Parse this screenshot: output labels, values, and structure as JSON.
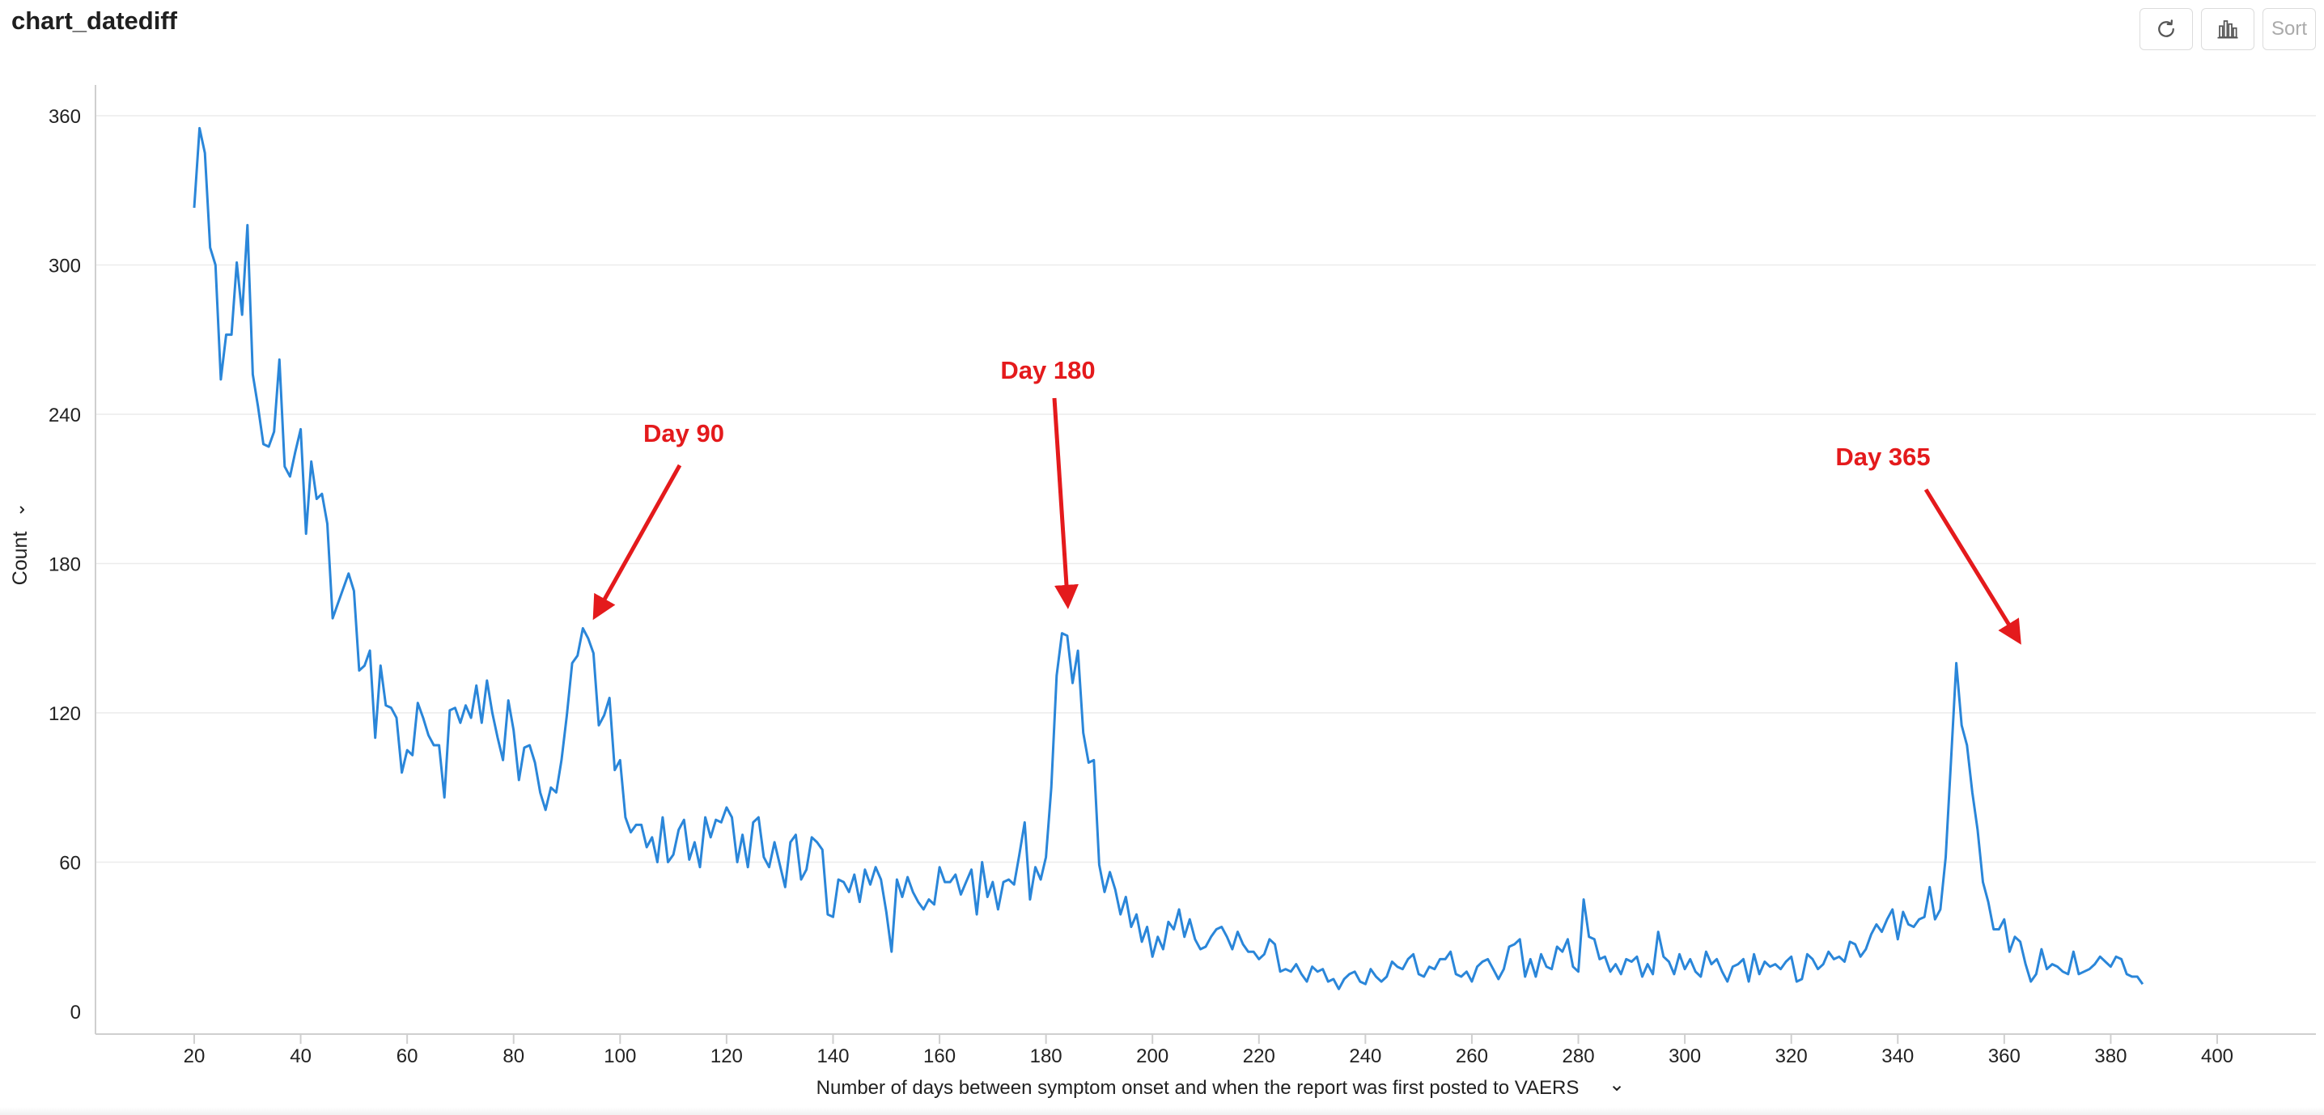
{
  "page": {
    "title": "chart_datediff"
  },
  "toolbar": {
    "refresh_icon": "refresh-icon",
    "chart_icon": "bar-chart-icon",
    "sort_label": "Sort"
  },
  "colors": {
    "line": "#2a86d9",
    "annotation": "#e41a1c",
    "grid": "#ececec"
  },
  "chart_data": {
    "type": "line",
    "title": "",
    "xlabel": "Number of days between symptom onset and when the report was first posted to VAERS",
    "ylabel": "Count",
    "xlim": [
      20,
      400
    ],
    "ylim": [
      0,
      360
    ],
    "xticks": [
      20,
      40,
      60,
      80,
      100,
      120,
      140,
      160,
      180,
      200,
      220,
      240,
      260,
      280,
      300,
      320,
      340,
      360,
      380,
      400
    ],
    "yticks": [
      0,
      60,
      120,
      180,
      240,
      300,
      360
    ],
    "grid": "horizontal",
    "legend": "none",
    "series": [
      {
        "x_start": 20,
        "x_step": 1,
        "values": [
          323,
          355,
          345,
          307,
          300,
          254,
          272,
          272,
          301,
          280,
          316,
          256,
          243,
          228,
          227,
          233,
          262,
          219,
          215,
          225,
          234,
          192,
          221,
          206,
          208,
          196,
          158,
          164,
          170,
          176,
          169,
          137,
          139,
          145,
          110,
          139,
          123,
          122,
          118,
          96,
          105,
          103,
          124,
          118,
          111,
          107,
          107,
          86,
          121,
          122,
          116,
          123,
          118,
          131,
          116,
          133,
          120,
          110,
          101,
          125,
          113,
          93,
          106,
          107,
          100,
          88,
          81,
          90,
          88,
          101,
          119,
          140,
          143,
          154,
          150,
          144,
          115,
          119,
          126,
          97,
          101,
          78,
          72,
          75,
          75,
          66,
          70,
          60,
          78,
          60,
          63,
          73,
          77,
          61,
          68,
          58,
          78,
          70,
          77,
          76,
          82,
          78,
          60,
          71,
          58,
          76,
          78,
          62,
          58,
          68,
          59,
          50,
          68,
          71,
          53,
          57,
          70,
          68,
          65,
          39,
          38,
          53,
          52,
          48,
          55,
          44,
          57,
          51,
          58,
          53,
          40,
          24,
          53,
          46,
          54,
          48,
          44,
          41,
          45,
          43,
          58,
          52,
          52,
          55,
          47,
          52,
          57,
          39,
          60,
          46,
          52,
          41,
          52,
          53,
          51,
          63,
          76,
          45,
          58,
          53,
          62,
          90,
          135,
          152,
          151,
          132,
          145,
          112,
          100,
          101,
          59,
          48,
          56,
          49,
          39,
          46,
          34,
          39,
          28,
          34,
          22,
          30,
          25,
          36,
          33,
          41,
          30,
          37,
          29,
          25,
          26,
          30,
          33,
          34,
          30,
          25,
          32,
          27,
          24,
          24,
          21,
          23,
          29,
          27,
          16,
          17,
          16,
          19,
          15,
          12,
          18,
          16,
          17,
          12,
          13,
          9,
          13,
          15,
          16,
          12,
          11,
          17,
          14,
          12,
          14,
          20,
          18,
          17,
          21,
          23,
          15,
          14,
          18,
          17,
          21,
          21,
          24,
          15,
          14,
          16,
          12,
          18,
          20,
          21,
          17,
          13,
          17,
          26,
          27,
          29,
          14,
          21,
          14,
          23,
          18,
          17,
          26,
          24,
          29,
          18,
          16,
          45,
          30,
          29,
          21,
          22,
          16,
          19,
          15,
          21,
          20,
          22,
          14,
          19,
          15,
          32,
          22,
          20,
          15,
          23,
          17,
          21,
          16,
          14,
          24,
          19,
          21,
          16,
          12,
          18,
          19,
          21,
          12,
          23,
          15,
          20,
          18,
          19,
          17,
          20,
          22,
          12,
          13,
          23,
          21,
          17,
          19,
          24,
          21,
          22,
          20,
          28,
          27,
          22,
          25,
          31,
          35,
          32,
          37,
          41,
          29,
          40,
          35,
          34,
          37,
          38,
          50,
          37,
          41,
          62,
          101,
          140,
          115,
          107,
          88,
          73,
          52,
          44,
          33,
          33,
          37,
          24,
          30,
          28,
          19,
          12,
          15,
          25,
          17,
          19,
          18,
          16,
          15,
          24,
          15,
          16,
          17,
          19,
          22,
          20,
          18,
          22,
          21,
          15,
          14,
          14,
          11
        ]
      }
    ],
    "annotations": [
      {
        "text": "Day 90",
        "target_x": 96,
        "target_y": 157
      },
      {
        "text": "Day 180",
        "target_x": 184,
        "target_y": 162
      },
      {
        "text": "Day 365",
        "target_x": 362,
        "target_y": 147
      }
    ]
  }
}
